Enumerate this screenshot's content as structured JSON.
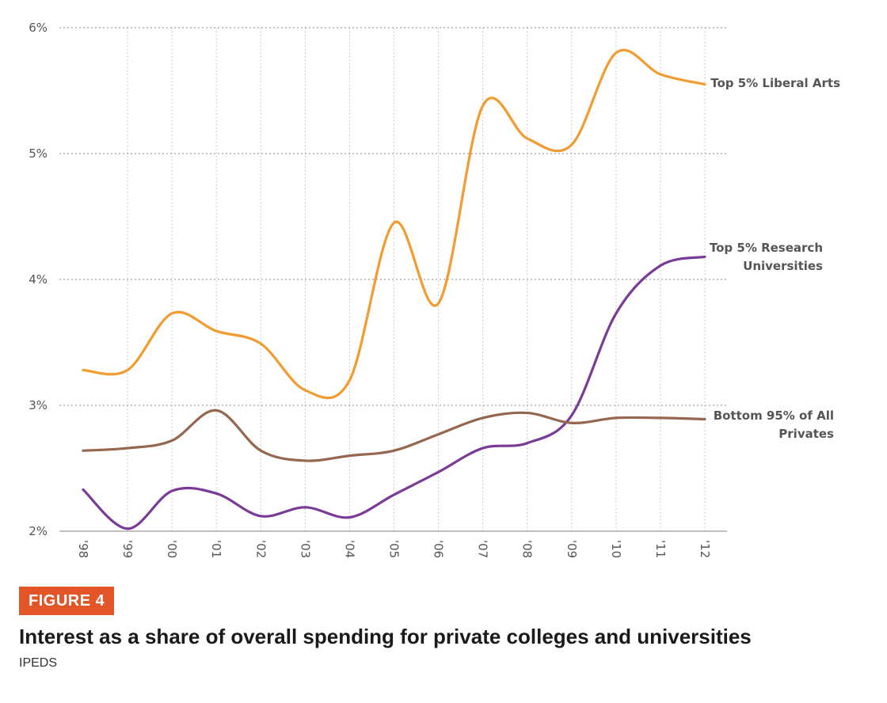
{
  "figure": {
    "badge": "FIGURE 4",
    "title": "Interest as a share of overall spending for private colleges and universities",
    "source": "IPEDS"
  },
  "chart_data": {
    "type": "line",
    "title": "",
    "xlabel": "",
    "ylabel": "",
    "x": [
      "'98",
      "'99",
      "'00",
      "'01",
      "'02",
      "'03",
      "'04",
      "'05",
      "'06",
      "'07",
      "'08",
      "'09",
      "'10",
      "'11",
      "'12"
    ],
    "y_ticks": [
      "2%",
      "3%",
      "4%",
      "5%",
      "6%"
    ],
    "ylim": [
      2,
      6
    ],
    "grid": "dotted horizontal and vertical",
    "legend": "labels at line ends (right)",
    "series": [
      {
        "name": "Top 5% Liberal Arts",
        "label_lines": [
          "Top 5% Liberal Arts"
        ],
        "color": "#f29b30",
        "values": [
          3.28,
          3.28,
          3.73,
          3.59,
          3.49,
          3.12,
          3.2,
          4.45,
          3.81,
          5.38,
          5.12,
          5.07,
          5.8,
          5.63,
          5.55
        ]
      },
      {
        "name": "Top 5% Research Universities",
        "label_lines": [
          "Top 5% Research",
          "Universities"
        ],
        "color": "#7a3b96",
        "values": [
          2.33,
          2.02,
          2.32,
          2.3,
          2.12,
          2.19,
          2.11,
          2.29,
          2.47,
          2.66,
          2.7,
          2.92,
          3.73,
          4.11,
          4.18
        ]
      },
      {
        "name": "Bottom 95% of All Privates",
        "label_lines": [
          "Bottom 95% of All",
          "Privates"
        ],
        "color": "#96674f",
        "values": [
          2.64,
          2.66,
          2.72,
          2.96,
          2.64,
          2.56,
          2.6,
          2.64,
          2.77,
          2.9,
          2.94,
          2.86,
          2.9,
          2.9,
          2.89
        ]
      }
    ]
  }
}
